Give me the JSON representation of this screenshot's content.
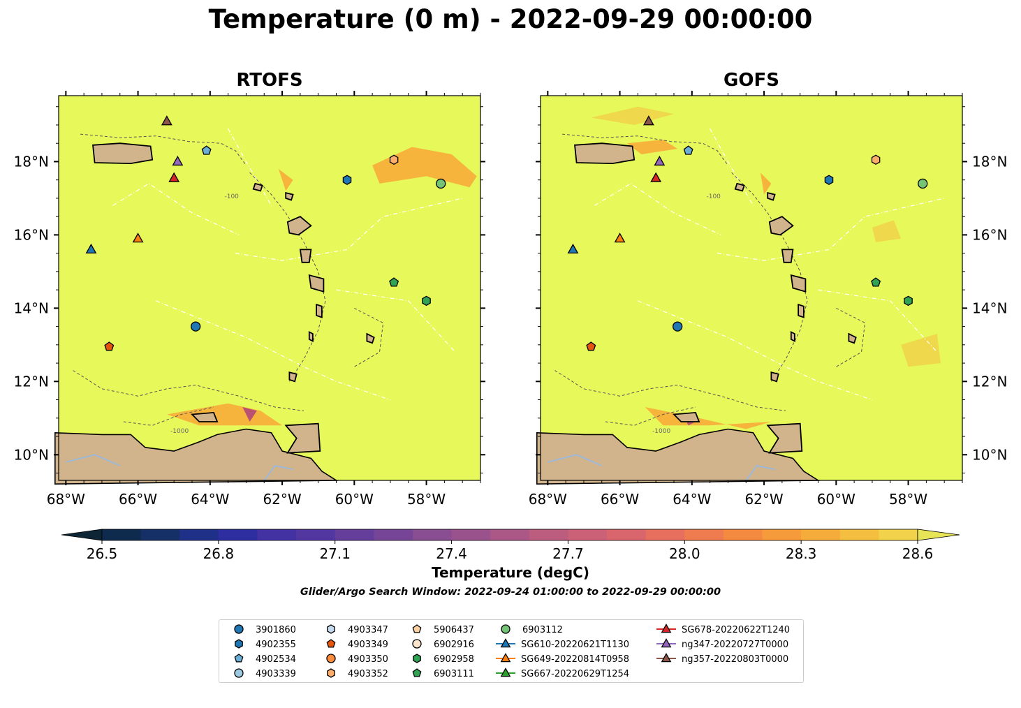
{
  "title": "Temperature (0 m) - 2022-09-29 00:00:00",
  "panels": [
    {
      "name": "rtofs",
      "title": "RTOFS"
    },
    {
      "name": "gofs",
      "title": "GOFS"
    }
  ],
  "map": {
    "lon_range": [
      -68.2,
      -56.5
    ],
    "lat_range": [
      9.3,
      19.8
    ],
    "lon_ticks": [
      -68,
      -66,
      -64,
      -62,
      -60,
      -58
    ],
    "lon_tick_labels": [
      "68°W",
      "66°W",
      "64°W",
      "62°W",
      "60°W",
      "58°W"
    ],
    "lat_ticks": [
      10,
      12,
      14,
      16,
      18
    ],
    "lat_tick_labels": [
      "10°N",
      "12°N",
      "14°N",
      "16°N",
      "18°N"
    ],
    "contour_labels": [
      "-1000",
      "-100"
    ],
    "colors": {
      "ocean": "#e7f95a",
      "land": "#d2b48c",
      "warm": "#f8a838",
      "mid": "#f0d24a",
      "cool": "#b0407a",
      "cooler": "#6a3290",
      "river": "#9db9d9",
      "contour": "#555555",
      "eez": "#ffffff"
    }
  },
  "colorbar": {
    "label": "Temperature (degC)",
    "min": 26.5,
    "max": 28.6,
    "tick_values": [
      26.5,
      26.8,
      27.1,
      27.4,
      27.7,
      28.0,
      28.3,
      28.6
    ],
    "tick_labels": [
      "26.5",
      "26.8",
      "27.1",
      "27.4",
      "27.7",
      "28.0",
      "28.3",
      "28.6"
    ],
    "colors": [
      "#0d2535",
      "#0e2b4e",
      "#152f67",
      "#1f3088",
      "#2f2ea0",
      "#4232a2",
      "#5337a0",
      "#653e9c",
      "#764597",
      "#894d92",
      "#9a528d",
      "#ab5887",
      "#bc5d80",
      "#cb6177",
      "#d9666c",
      "#e66f5e",
      "#ef7c4f",
      "#f48a40",
      "#f59b3b",
      "#f5ac3b",
      "#f4bf41",
      "#f1d24a",
      "#e7e458"
    ]
  },
  "search_window": "Glider/Argo Search Window: 2022-09-24 01:00:00 to 2022-09-29 00:00:00",
  "legend": [
    {
      "label": "3901860",
      "marker": "circle",
      "color": "#1f77b4",
      "line": false
    },
    {
      "label": "4902355",
      "marker": "hexagon",
      "color": "#1f77b4",
      "line": false
    },
    {
      "label": "4902534",
      "marker": "pentagon",
      "color": "#6baed6",
      "line": false
    },
    {
      "label": "4903339",
      "marker": "circle",
      "color": "#9ecae1",
      "line": false
    },
    {
      "label": "4903347",
      "marker": "hexagon",
      "color": "#c6dbef",
      "line": false
    },
    {
      "label": "4903349",
      "marker": "pentagon",
      "color": "#e6550d",
      "line": false
    },
    {
      "label": "4903350",
      "marker": "circle",
      "color": "#fd8d3c",
      "line": false
    },
    {
      "label": "4903352",
      "marker": "hexagon",
      "color": "#fdae6b",
      "line": false
    },
    {
      "label": "5906437",
      "marker": "pentagon",
      "color": "#fdd0a2",
      "line": false
    },
    {
      "label": "6902916",
      "marker": "circle",
      "color": "#fee6ce",
      "line": false
    },
    {
      "label": "6902958",
      "marker": "hexagon",
      "color": "#31a354",
      "line": false
    },
    {
      "label": "6903111",
      "marker": "pentagon",
      "color": "#31a354",
      "line": false
    },
    {
      "label": "6903112",
      "marker": "circle",
      "color": "#74c476",
      "line": false
    },
    {
      "label": "SG610-20220621T1130",
      "marker": "triangle",
      "color": "#1f77b4",
      "line": true
    },
    {
      "label": "SG649-20220814T0958",
      "marker": "triangle",
      "color": "#ff7f0e",
      "line": true
    },
    {
      "label": "SG667-20220629T1254",
      "marker": "triangle",
      "color": "#2ca02c",
      "line": true
    },
    {
      "label": "SG678-20220622T1240",
      "marker": "triangle",
      "color": "#d62728",
      "line": true
    },
    {
      "label": "ng347-20220727T0000",
      "marker": "triangle",
      "color": "#9467bd",
      "line": true
    },
    {
      "label": "ng357-20220803T0000",
      "marker": "triangle",
      "color": "#8c564b",
      "line": true
    }
  ],
  "stations": [
    {
      "id": "3901860",
      "lon": -64.4,
      "lat": 13.5
    },
    {
      "id": "4902355",
      "lon": -60.2,
      "lat": 17.5
    },
    {
      "id": "4902534",
      "lon": -64.1,
      "lat": 18.3
    },
    {
      "id": "4903349",
      "lon": -66.8,
      "lat": 12.95
    },
    {
      "id": "4903352",
      "lon": -58.9,
      "lat": 18.05
    },
    {
      "id": "6902958",
      "lon": -58.0,
      "lat": 14.2
    },
    {
      "id": "6903111",
      "lon": -58.9,
      "lat": 14.7
    },
    {
      "id": "6903112",
      "lon": -57.6,
      "lat": 17.4
    },
    {
      "id": "SG610-20220621T1130",
      "lon": -67.3,
      "lat": 15.6
    },
    {
      "id": "SG649-20220814T0958",
      "lon": -66.0,
      "lat": 15.9
    },
    {
      "id": "SG678-20220622T1240",
      "lon": -65.0,
      "lat": 17.55
    },
    {
      "id": "ng347-20220727T0000",
      "lon": -64.9,
      "lat": 18.0
    },
    {
      "id": "ng357-20220803T0000",
      "lon": -65.2,
      "lat": 19.1
    }
  ]
}
